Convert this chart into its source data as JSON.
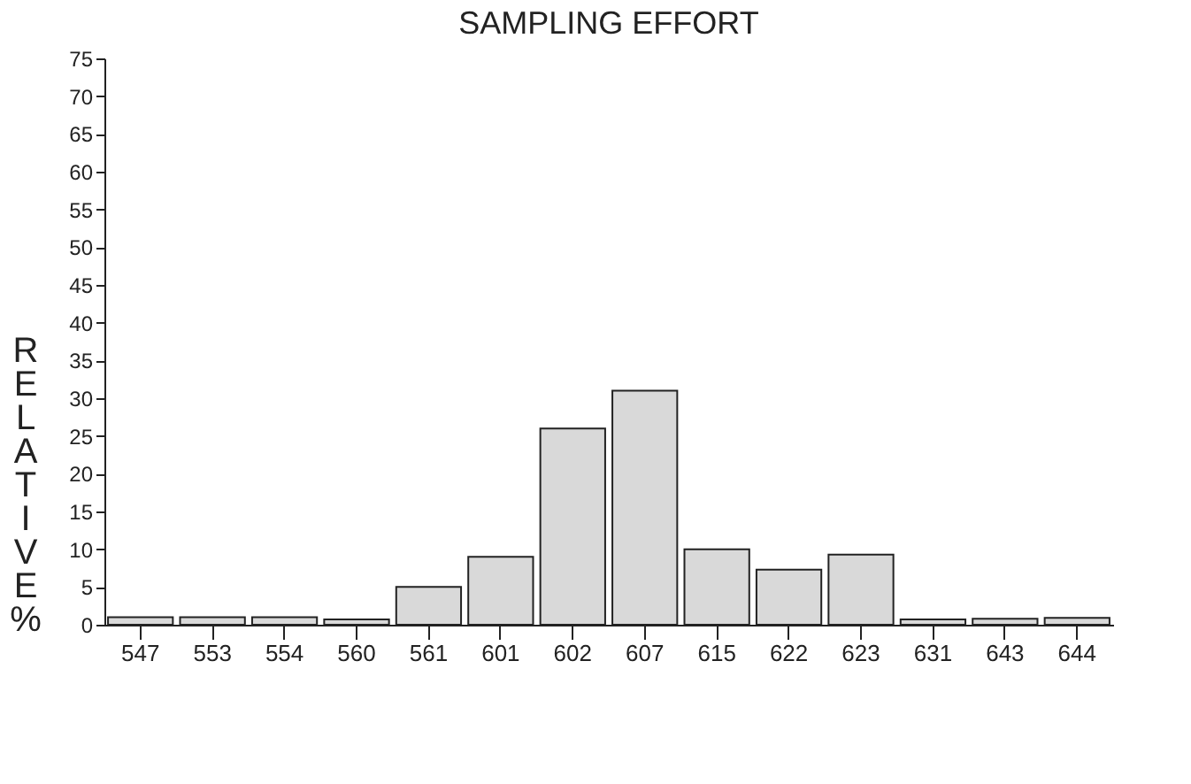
{
  "chart_data": {
    "type": "bar",
    "title": "SAMPLING EFFORT",
    "ylabel": "RELATIVE %",
    "categories": [
      "547",
      "553",
      "554",
      "560",
      "561",
      "601",
      "602",
      "607",
      "615",
      "622",
      "623",
      "631",
      "643",
      "644"
    ],
    "values": [
      1,
      1,
      1,
      0.7,
      5,
      9,
      26,
      31,
      10,
      7.3,
      9.3,
      0.7,
      0.8,
      0.9
    ],
    "color": "#d9d9d9",
    "ylim": [
      0,
      75
    ],
    "yticks": [
      0,
      5,
      10,
      15,
      20,
      25,
      30,
      35,
      40,
      45,
      50,
      55,
      60,
      65,
      70,
      75
    ],
    "grid": false
  }
}
